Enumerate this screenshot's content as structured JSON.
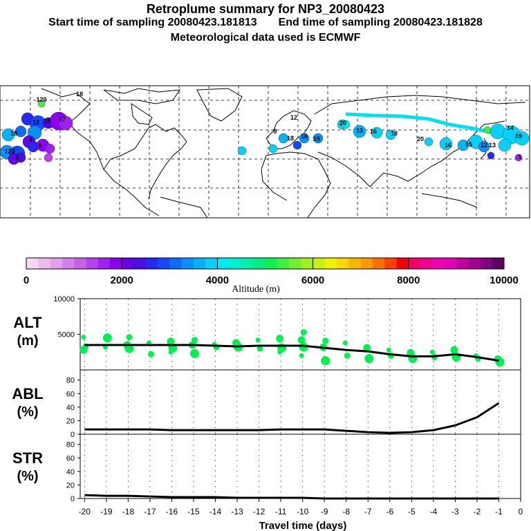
{
  "header": {
    "title": "Retroplume summary for NP3_20080423",
    "sampling_start_label": "Start time of sampling",
    "sampling_start": "20080423.181813",
    "sampling_end_label": "End time of sampling",
    "sampling_end": "20080423.181828",
    "met_data": "Meteorological data used is ECMWF"
  },
  "colorbar": {
    "label": "Altitude  (m)",
    "tick_labels": [
      "0",
      "2000",
      "4000",
      "6000",
      "8000",
      "10000"
    ],
    "min": 0,
    "max": 10000,
    "colors": [
      "#f4d8f4",
      "#ecbcf0",
      "#e4a0ec",
      "#d480e8",
      "#c860e8",
      "#b840f0",
      "#a020f0",
      "#8c00f0",
      "#6a00e8",
      "#4810e0",
      "#2828f0",
      "#1448f8",
      "#0c6cf8",
      "#0890f8",
      "#08b0f8",
      "#08d0f8",
      "#00e8f0",
      "#00f0d0",
      "#00f0a8",
      "#00f080",
      "#10f050",
      "#40f040",
      "#70f030",
      "#a0f020",
      "#c8f010",
      "#f0f000",
      "#f8d800",
      "#f8b800",
      "#f89800",
      "#f87000",
      "#f84000",
      "#f80000",
      "#f00060",
      "#f00090",
      "#f000b0",
      "#e000b8",
      "#c000a0",
      "#a00090",
      "#800080",
      "#600060"
    ]
  },
  "chart_data": [
    {
      "id": "ALT",
      "type": "line",
      "ylabel_line1": "ALT",
      "ylabel_line2": "(m)",
      "ylim": [
        0,
        10000
      ],
      "y_ticks": [
        "10000",
        "5000"
      ],
      "x": [
        -20,
        -19,
        -18,
        -17,
        -16,
        -15,
        -14,
        -13,
        -12,
        -11,
        -10,
        -9,
        -8,
        -7,
        -6,
        -5,
        -4,
        -3,
        -2,
        -1
      ],
      "values": [
        3500,
        3500,
        3500,
        3500,
        3500,
        3500,
        3400,
        3300,
        3400,
        3400,
        3400,
        3100,
        2800,
        2600,
        2200,
        1900,
        1900,
        2200,
        1800,
        1300
      ],
      "point_color": "#00f050",
      "points": [
        {
          "x": -20,
          "y": 4600
        },
        {
          "x": -20,
          "y": 3300
        },
        {
          "x": -20,
          "y": 2800
        },
        {
          "x": -19,
          "y": 4500
        },
        {
          "x": -19,
          "y": 3200
        },
        {
          "x": -18,
          "y": 4600
        },
        {
          "x": -18,
          "y": 3500
        },
        {
          "x": -18,
          "y": 3000
        },
        {
          "x": -17,
          "y": 3800
        },
        {
          "x": -17,
          "y": 2200
        },
        {
          "x": -16,
          "y": 4000
        },
        {
          "x": -16,
          "y": 3100
        },
        {
          "x": -16,
          "y": 2500
        },
        {
          "x": -15,
          "y": 4200
        },
        {
          "x": -15,
          "y": 3500
        },
        {
          "x": -15,
          "y": 2300
        },
        {
          "x": -14,
          "y": 3600
        },
        {
          "x": -14,
          "y": 3200
        },
        {
          "x": -13,
          "y": 3800
        },
        {
          "x": -13,
          "y": 3200
        },
        {
          "x": -12,
          "y": 4200
        },
        {
          "x": -12,
          "y": 3000
        },
        {
          "x": -11,
          "y": 4400
        },
        {
          "x": -11,
          "y": 3100
        },
        {
          "x": -11,
          "y": 2500
        },
        {
          "x": -10,
          "y": 5300
        },
        {
          "x": -10,
          "y": 4200
        },
        {
          "x": -10,
          "y": 3200
        },
        {
          "x": -10,
          "y": 2000
        },
        {
          "x": -9,
          "y": 4100
        },
        {
          "x": -9,
          "y": 3200
        },
        {
          "x": -9,
          "y": 1300
        },
        {
          "x": -8,
          "y": 3800
        },
        {
          "x": -8,
          "y": 2000
        },
        {
          "x": -7,
          "y": 3100
        },
        {
          "x": -7,
          "y": 1600
        },
        {
          "x": -6,
          "y": 2800
        },
        {
          "x": -6,
          "y": 2000
        },
        {
          "x": -5,
          "y": 2400
        },
        {
          "x": -5,
          "y": 1600
        },
        {
          "x": -4,
          "y": 2500
        },
        {
          "x": -4,
          "y": 1800
        },
        {
          "x": -3,
          "y": 2800
        },
        {
          "x": -3,
          "y": 1800
        },
        {
          "x": -2,
          "y": 2000
        },
        {
          "x": -2,
          "y": 1600
        },
        {
          "x": -1,
          "y": 1500
        },
        {
          "x": -1,
          "y": 1100
        }
      ]
    },
    {
      "id": "ABL",
      "type": "line",
      "ylabel_line1": "ABL",
      "ylabel_line2": "(%)",
      "ylim": [
        0,
        95
      ],
      "y_ticks": [
        "80",
        "60",
        "40",
        "20",
        "0"
      ],
      "x": [
        -20,
        -19,
        -18,
        -17,
        -16,
        -15,
        -14,
        -13,
        -12,
        -11,
        -10,
        -9,
        -8,
        -7,
        -6,
        -5,
        -4,
        -3,
        -2,
        -1
      ],
      "values": [
        7,
        7,
        7,
        7,
        6,
        6,
        6,
        6,
        6,
        7,
        7,
        7,
        5,
        3,
        2,
        3,
        6,
        13,
        25,
        46
      ]
    },
    {
      "id": "STR",
      "type": "line",
      "ylabel_line1": "STR",
      "ylabel_line2": "(%)",
      "ylim": [
        0,
        95
      ],
      "y_ticks": [
        "80",
        "60",
        "40",
        "20",
        "0"
      ],
      "x": [
        -20,
        -19,
        -18,
        -17,
        -16,
        -15,
        -14,
        -13,
        -12,
        -11,
        -10,
        -9,
        -8,
        -7,
        -6,
        -5,
        -4,
        -3,
        -2,
        -1
      ],
      "values": [
        5,
        4,
        4,
        3,
        2,
        2,
        2,
        1,
        1,
        1,
        1,
        0,
        0,
        0,
        0,
        0,
        0,
        0,
        0,
        0
      ]
    }
  ],
  "x_axis": {
    "label": "Travel time (days)",
    "tick_labels": [
      "-20",
      "-19",
      "-18",
      "-17",
      "-16",
      "-15",
      "-14",
      "-13",
      "-12",
      "-11",
      "-10",
      "-9",
      "-8",
      "-7",
      "-6",
      "-5",
      "-4",
      "-3",
      "-2",
      "-1",
      "0"
    ]
  },
  "map_labels": [
    "120",
    "18",
    "12",
    "15",
    "17",
    "18",
    "120",
    "6",
    "4",
    "5",
    "8",
    "12",
    "20",
    "13",
    "18",
    "16",
    "15",
    "16",
    "18",
    "20",
    "16",
    "15",
    "12",
    "14",
    "19",
    "13",
    "1"
  ]
}
